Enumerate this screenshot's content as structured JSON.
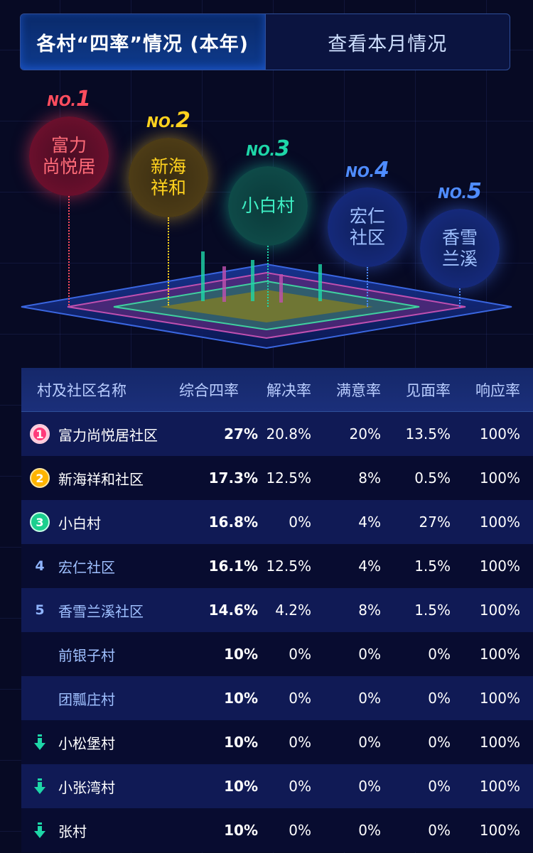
{
  "tabs": [
    {
      "label": "各村“四率”情况 (本年)",
      "active": true
    },
    {
      "label": "查看本月情况",
      "active": false
    }
  ],
  "ranking": [
    {
      "prefix": "NO.",
      "rank": "1",
      "name_lines": [
        "富力",
        "尚悦居"
      ],
      "color": "#ff4d5e"
    },
    {
      "prefix": "NO.",
      "rank": "2",
      "name_lines": [
        "新海",
        "祥和"
      ],
      "color": "#ffd21e"
    },
    {
      "prefix": "NO.",
      "rank": "3",
      "name_lines": [
        "小白村"
      ],
      "color": "#1ed6a8"
    },
    {
      "prefix": "NO.",
      "rank": "4",
      "name_lines": [
        "宏仁",
        "社区"
      ],
      "color": "#4f8cff"
    },
    {
      "prefix": "NO.",
      "rank": "5",
      "name_lines": [
        "香雪",
        "兰溪"
      ],
      "color": "#4f8cff"
    }
  ],
  "table": {
    "headers": [
      "村及社区名称",
      "综合四率",
      "解决率",
      "满意率",
      "见面率",
      "响应率"
    ],
    "rows": [
      {
        "marker": "badge",
        "rank": "1",
        "name": "富力尚悦居社区",
        "total": "27%",
        "resolve": "20.8%",
        "satisfy": "20%",
        "meet": "13.5%",
        "respond": "100%"
      },
      {
        "marker": "badge",
        "rank": "2",
        "name": "新海祥和社区",
        "total": "17.3%",
        "resolve": "12.5%",
        "satisfy": "8%",
        "meet": "0.5%",
        "respond": "100%"
      },
      {
        "marker": "badge",
        "rank": "3",
        "name": "小白村",
        "total": "16.8%",
        "resolve": "0%",
        "satisfy": "4%",
        "meet": "27%",
        "respond": "100%"
      },
      {
        "marker": "number",
        "rank": "4",
        "name": "宏仁社区",
        "total": "16.1%",
        "resolve": "12.5%",
        "satisfy": "4%",
        "meet": "1.5%",
        "respond": "100%"
      },
      {
        "marker": "number",
        "rank": "5",
        "name": "香雪兰溪社区",
        "total": "14.6%",
        "resolve": "4.2%",
        "satisfy": "8%",
        "meet": "1.5%",
        "respond": "100%"
      },
      {
        "marker": "none",
        "rank": "",
        "name": "前银子村",
        "total": "10%",
        "resolve": "0%",
        "satisfy": "0%",
        "meet": "0%",
        "respond": "100%"
      },
      {
        "marker": "none",
        "rank": "",
        "name": "团瓢庄村",
        "total": "10%",
        "resolve": "0%",
        "satisfy": "0%",
        "meet": "0%",
        "respond": "100%"
      },
      {
        "marker": "down",
        "rank": "",
        "name": "小松堡村",
        "total": "10%",
        "resolve": "0%",
        "satisfy": "0%",
        "meet": "0%",
        "respond": "100%"
      },
      {
        "marker": "down",
        "rank": "",
        "name": "小张湾村",
        "total": "10%",
        "resolve": "0%",
        "satisfy": "0%",
        "meet": "0%",
        "respond": "100%"
      },
      {
        "marker": "down",
        "rank": "",
        "name": "张村",
        "total": "10%",
        "resolve": "0%",
        "satisfy": "0%",
        "meet": "0%",
        "respond": "100%"
      }
    ]
  }
}
